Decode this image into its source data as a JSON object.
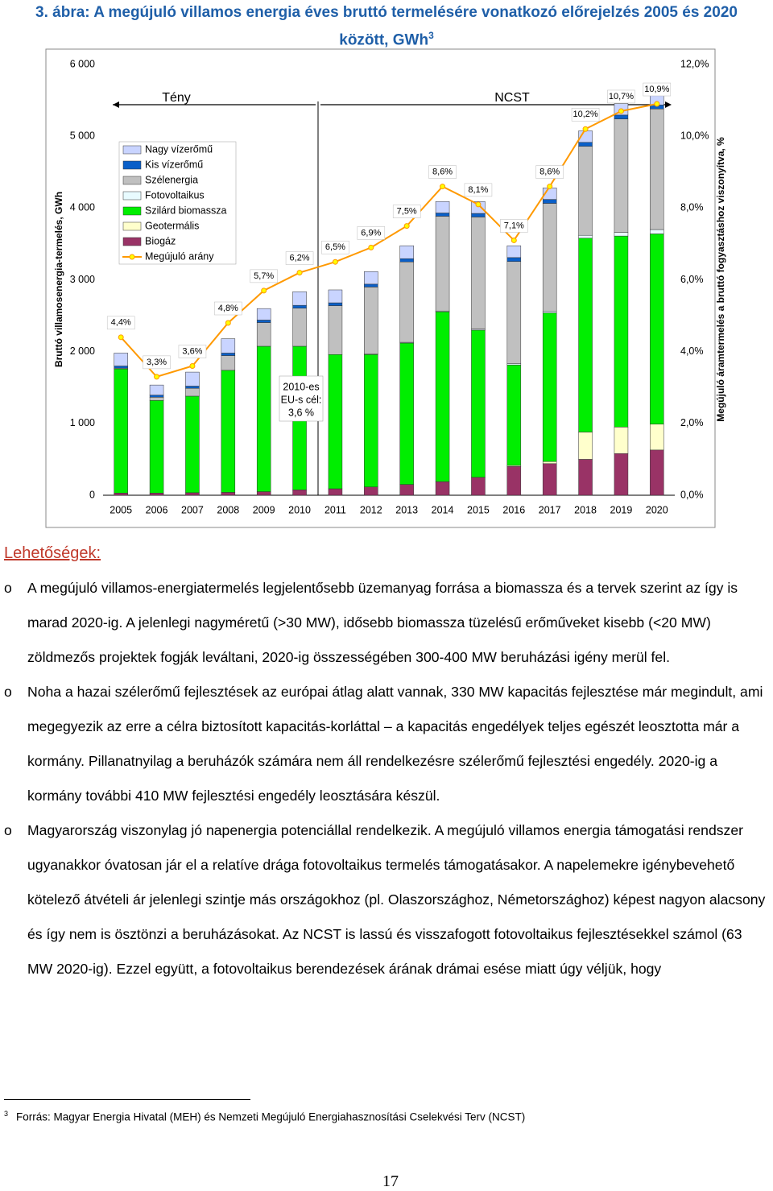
{
  "header": {
    "title": "3. ábra: A megújuló villamos energia éves bruttó termelésére vonatkozó előrejelzés 2005 és 2020 között, GWh",
    "footnote_ref": "3"
  },
  "chart_data": {
    "type": "bar",
    "stacked": true,
    "y_label": "Bruttó villamosenergia-termelés, GWh",
    "y2_label": "Megújuló áramtermelés a bruttó fogyasztáshoz viszonyítva, %",
    "categories": [
      "2005",
      "2006",
      "2007",
      "2008",
      "2009",
      "2010",
      "2011",
      "2012",
      "2013",
      "2014",
      "2015",
      "2016",
      "2017",
      "2018",
      "2019",
      "2020"
    ],
    "ylim": [
      0,
      6000
    ],
    "yticks": [
      0,
      {
        "value": 1000,
        "label": "1 000"
      },
      {
        "value": 2000,
        "label": "2 000"
      },
      {
        "value": 3000,
        "label": "3 000"
      },
      {
        "value": 4000,
        "label": "4 000"
      },
      {
        "value": 5000,
        "label": "5 000"
      },
      {
        "value": 6000,
        "label": "6 000"
      }
    ],
    "y2lim": [
      0,
      12
    ],
    "y2ticks": [
      {
        "value": 0,
        "label": "0,0%"
      },
      {
        "value": 2,
        "label": "2,0%"
      },
      {
        "value": 4,
        "label": "4,0%"
      },
      {
        "value": 6,
        "label": "6,0%"
      },
      {
        "value": 8,
        "label": "8,0%"
      },
      {
        "value": 10,
        "label": "10,0%"
      },
      {
        "value": 12,
        "label": "12,0%"
      }
    ],
    "series": [
      {
        "name": "Nagy vízerőmű",
        "color": "#c9d4ff",
        "values": [
          180,
          140,
          195,
          200,
          160,
          190,
          180,
          175,
          180,
          160,
          165,
          165,
          160,
          160,
          160,
          170
        ]
      },
      {
        "name": "Kis vízerőmű",
        "color": "#0a5fc8",
        "values": [
          30,
          30,
          30,
          35,
          35,
          40,
          40,
          40,
          45,
          45,
          50,
          55,
          55,
          55,
          55,
          55
        ]
      },
      {
        "name": "Szélenergia",
        "color": "#c0c0c0",
        "values": [
          10,
          45,
          110,
          205,
          330,
          530,
          680,
          935,
          1120,
          1320,
          1560,
          1420,
          1500,
          1240,
          1580,
          1680
        ]
      },
      {
        "name": "Fotovoltaikus",
        "color": "#e8fbff",
        "values": [
          0,
          0,
          0,
          0,
          0,
          0,
          0,
          5,
          10,
          10,
          15,
          20,
          25,
          40,
          50,
          60
        ]
      },
      {
        "name": "Szilárd biomassza",
        "color": "#00ee00",
        "values": [
          1730,
          1290,
          1345,
          1700,
          2025,
          2000,
          1870,
          1845,
          1970,
          2366,
          2050,
          1400,
          2070,
          2700,
          2660,
          2650
        ]
      },
      {
        "name": "Geotermális",
        "color": "#ffffcc",
        "values": [
          0,
          0,
          0,
          0,
          0,
          0,
          0,
          0,
          0,
          0,
          0,
          15,
          30,
          380,
          370,
          360
        ]
      },
      {
        "name": "Biogáz",
        "color": "#993366",
        "values": [
          30,
          30,
          35,
          40,
          50,
          75,
          90,
          115,
          150,
          190,
          250,
          400,
          440,
          500,
          580,
          630
        ]
      },
      {
        "name": "Megújuló arány",
        "type": "line",
        "axis": "y2",
        "color": "#ff9900",
        "marker_color": "#ffff00",
        "values": [
          4.4,
          3.3,
          3.6,
          4.8,
          5.7,
          6.2,
          6.5,
          6.9,
          7.5,
          8.6,
          8.1,
          7.1,
          8.6,
          10.2,
          10.7,
          10.9
        ],
        "value_labels": [
          "4,4%",
          "3,3%",
          "3,6%",
          "4,8%",
          "5,7%",
          "6,2%",
          "6,5%",
          "6,9%",
          "7,5%",
          "8,6%",
          "8,1%",
          "7,1%",
          "8,6%",
          "10,2%",
          "10,7%",
          "10,9%"
        ]
      }
    ],
    "annotations": {
      "fact": "Tény",
      "plan": "NCST",
      "eu_target_note": [
        "2010-es",
        "EU-s cél:",
        "3,6 %"
      ]
    }
  },
  "section": {
    "heading": "Lehetőségek:",
    "bullet_marker": "o",
    "bullets": [
      "A megújuló villamos-energiatermelés legjelentősebb üzemanyag forrása a biomassza és a tervek szerint az így is marad 2020-ig. A jelenlegi nagyméretű (>30 MW), idősebb biomassza tüzelésű erőműveket kisebb (<20 MW) zöldmezős projektek fogják leváltani, 2020-ig összességében 300-400 MW beruházási igény merül fel.",
      "Noha a hazai szélerőmű fejlesztések az európai átlag alatt vannak, 330 MW kapacitás fejlesztése már megindult, ami megegyezik az erre a célra biztosított kapacitás-korláttal – a kapacitás engedélyek teljes egészét leosztotta már a kormány. Pillanatnyilag a beruházók számára nem áll rendelkezésre szélerőmű fejlesztési engedély. 2020-ig a kormány további 410 MW fejlesztési engedély leosztására készül.",
      "Magyarország viszonylag jó napenergia potenciállal rendelkezik. A megújuló villamos energia támogatási rendszer ugyanakkor óvatosan jár el a relatíve drága fotovoltaikus termelés támogatásakor. A napelemekre igénybevehető kötelező átvételi ár jelenlegi szintje más országokhoz (pl. Olaszországhoz, Németországhoz) képest nagyon alacsony és így nem is ösztönzi a beruházásokat. Az NCST is lassú és visszafogott fotovoltaikus fejlesztésekkel számol (63 MW 2020-ig). Ezzel együtt, a fotovoltaikus berendezések árának drámai esése miatt úgy véljük, hogy"
    ]
  },
  "footnote": {
    "marker": "3",
    "text": "Forrás: Magyar Energia Hivatal (MEH) és Nemzeti Megújuló Energiahasznosítási Cselekvési Terv (NCST)"
  },
  "page_number": "17"
}
